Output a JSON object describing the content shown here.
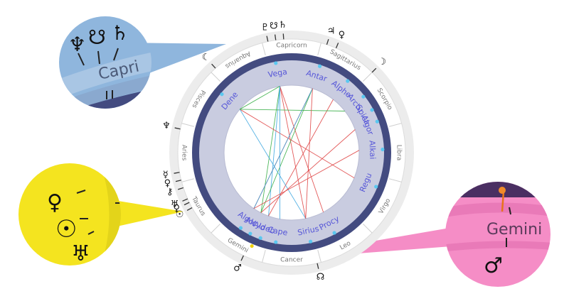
{
  "chart": {
    "signs": [
      "Capricorn",
      "Sagittarius",
      "Scorpio",
      "Libra",
      "Virgo",
      "Leo",
      "Cancer",
      "Gemini",
      "Taurus",
      "Aries",
      "Pisces",
      "Aquarius"
    ],
    "stars": [
      "Vega",
      "Antar",
      "Alphe",
      "Arctu",
      "Spica",
      "Algor",
      "Alkai",
      "Regu",
      "Procy",
      "Sirius",
      "Cape",
      "Aldeb",
      "Alcyo",
      "Algol",
      "Dene"
    ],
    "planet_glyphs": [
      {
        "name": "pluto",
        "glyph": "♇"
      },
      {
        "name": "ceres",
        "glyph": "☋"
      },
      {
        "name": "saturn",
        "glyph": "♄"
      },
      {
        "name": "jupiter",
        "glyph": "♃"
      },
      {
        "name": "venus-ascendant",
        "glyph": "♀"
      },
      {
        "name": "moon-left",
        "glyph": "☾"
      },
      {
        "name": "moon-right",
        "glyph": "☽"
      },
      {
        "name": "neptune",
        "glyph": "♆"
      },
      {
        "name": "mercury",
        "glyph": "☿"
      },
      {
        "name": "venus",
        "glyph": "♀"
      },
      {
        "name": "chiron",
        "glyph": "⚷"
      },
      {
        "name": "venus-lower",
        "glyph": "♀"
      },
      {
        "name": "sun",
        "glyph": "☉"
      },
      {
        "name": "uranus",
        "glyph": "♅"
      },
      {
        "name": "mars",
        "glyph": "♂"
      },
      {
        "name": "north-node",
        "glyph": "☊"
      }
    ]
  },
  "callouts": {
    "capricorn": {
      "sign_label": "Capri",
      "glyphs": [
        "♆",
        "☋",
        "♄"
      ]
    },
    "aries": {
      "glyphs": [
        "♀",
        "☉",
        "♅"
      ]
    },
    "gemini": {
      "sign_label": "Gemini",
      "glyphs": [
        "♂"
      ]
    }
  },
  "colors": {
    "dark_ring": "#434b80",
    "band": "#c9cce0",
    "star_text": "#5656d8",
    "star_dot": "#5bc8f0",
    "outer_ring": "#e8e8e8",
    "callout_blue": "#8fb6dd",
    "callout_yellow": "#f4e41f",
    "callout_pink": "#f58dc6",
    "aspect_red": "#e04848",
    "aspect_green": "#3bb04a",
    "aspect_blue": "#40a8e0"
  }
}
